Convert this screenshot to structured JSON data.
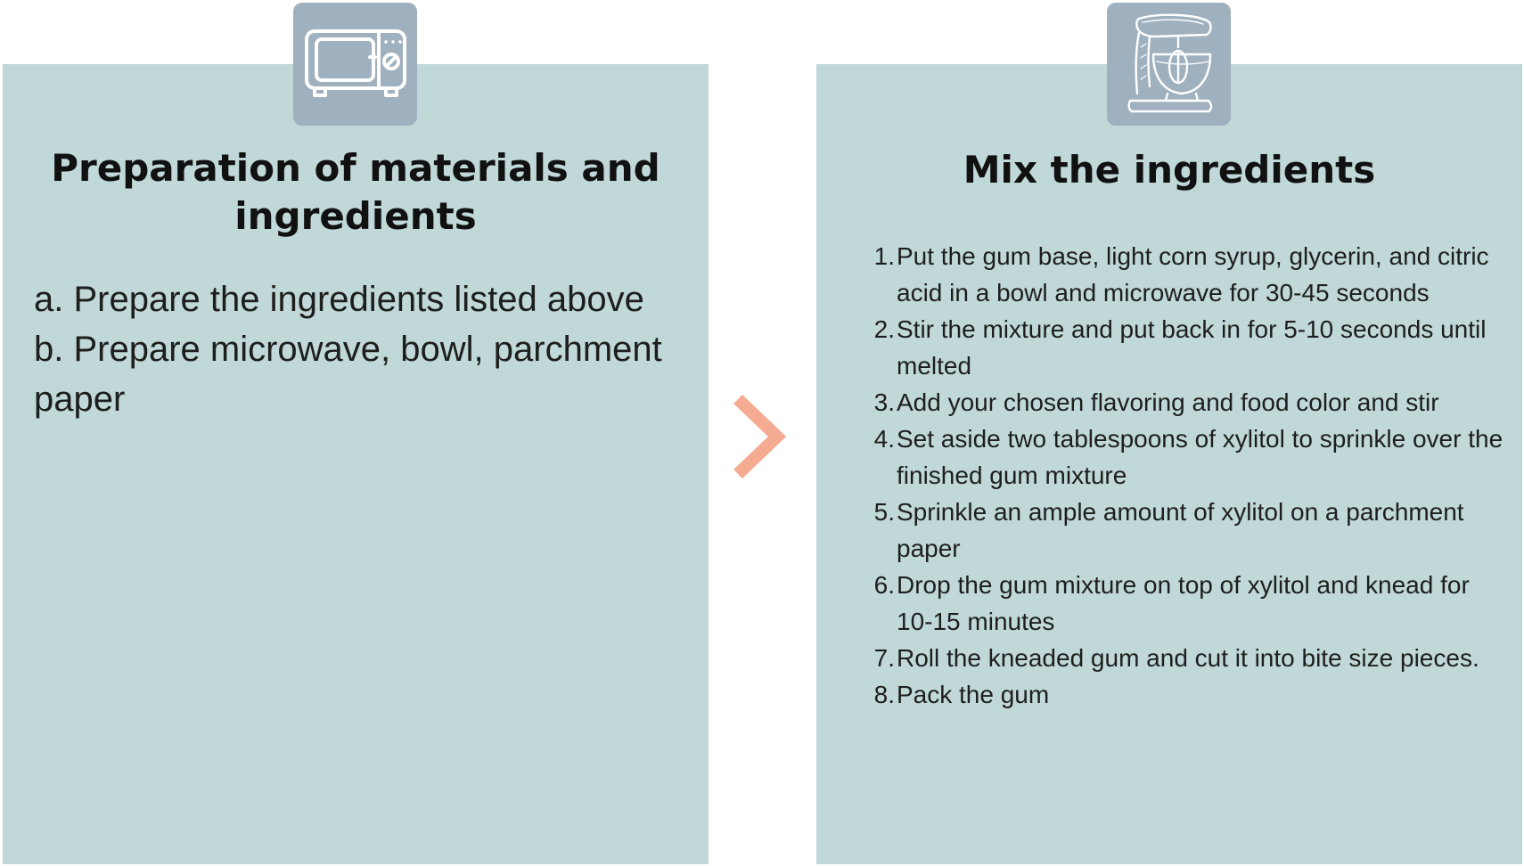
{
  "colors": {
    "panel_background": "#c0d8d8",
    "icon_tile_background": "#9fb0be",
    "arrow": "#f5ab92",
    "icon_stroke": "#ffffff"
  },
  "left_panel": {
    "icon": "microwave-icon",
    "title": "Preparation of materials and ingredients",
    "items": [
      "a. Prepare the ingredients listed above",
      "b. Prepare microwave, bowl, parchment paper"
    ]
  },
  "arrow_icon": "chevron-right-icon",
  "right_panel": {
    "icon": "stand-mixer-icon",
    "title": "Mix the ingredients",
    "steps": [
      {
        "num": "1.",
        "text": "Put the gum base, light corn syrup, glycerin, and citric acid in a bowl and microwave for 30-45 seconds"
      },
      {
        "num": "2.",
        "text": "Stir the mixture and put back in for 5-10 seconds until melted"
      },
      {
        "num": "3.",
        "text": "Add your chosen flavoring and food color and stir"
      },
      {
        "num": "4.",
        "text": "Set aside two tablespoons of xylitol to sprinkle over the finished gum mixture"
      },
      {
        "num": "5.",
        "text": "Sprinkle an ample amount of xylitol on a parchment paper"
      },
      {
        "num": "6.",
        "text": "Drop the gum mixture on top of xylitol and knead for 10-15 minutes"
      },
      {
        "num": "7.",
        "text": "Roll the kneaded gum and cut it into bite size pieces."
      },
      {
        "num": "8.",
        "text": "Pack the gum"
      }
    ]
  }
}
